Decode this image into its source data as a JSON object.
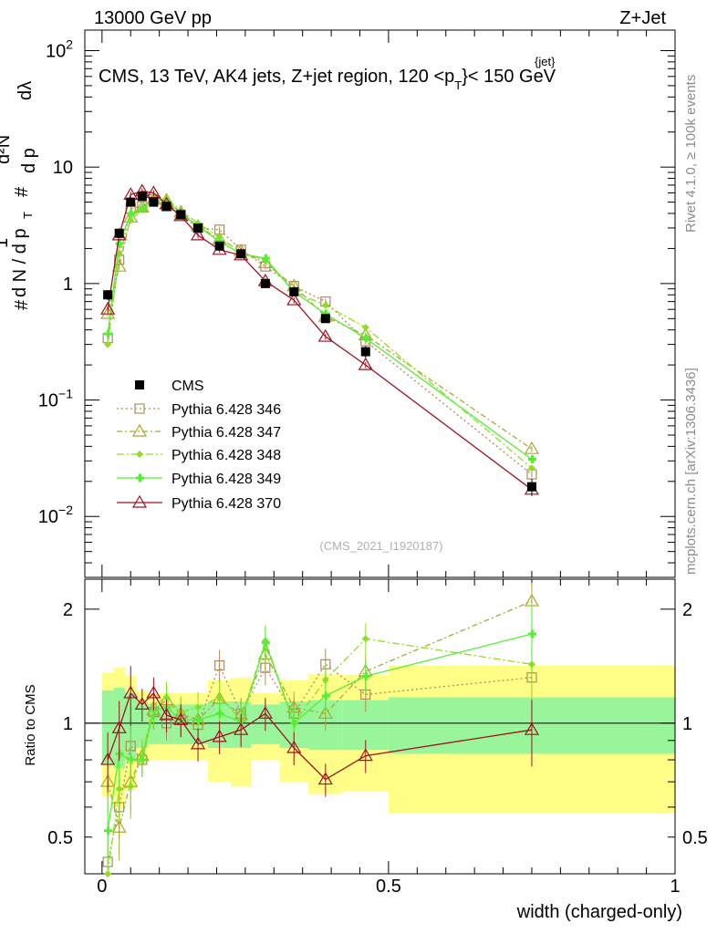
{
  "header": {
    "left": "13000 GeV pp",
    "right": "Z+Jet"
  },
  "side_labels": {
    "top": "Rivet 4.1.0, ≥ 100k events",
    "bottom": "mcplots.cern.ch [arXiv:1306.3436]"
  },
  "chart_data": {
    "type": "line",
    "title": "CMS, 13 TeV, AK4 jets, Z+jet region, 120 <p",
    "title_sup": "{jet}",
    "title_sub": "T",
    "title_tail": "}< 150 GeV",
    "analysis_tag": "(CMS_2021_I1920187)",
    "xlabel": "width (charged-only)",
    "ylabel_parts": {
      "hash": "#",
      "one": "1",
      "dN": "d N / d p",
      "T": "T",
      "hash2": "#",
      "d2N": "d²N",
      "dpT": "d p",
      "dl": "dλ"
    },
    "ratio_ylabel": "Ratio to CMS",
    "xlim": [
      -0.03,
      1.0
    ],
    "ylim": [
      0.003,
      150
    ],
    "ratio_ylim": [
      0.4,
      2.4
    ],
    "x_ticks": [
      {
        "v": 0,
        "label": "0"
      },
      {
        "v": 0.5,
        "label": "0.5"
      },
      {
        "v": 1,
        "label": "1"
      }
    ],
    "y_ticks": [
      {
        "v": 0.01,
        "base": "10",
        "exp": "−2"
      },
      {
        "v": 0.1,
        "base": "10",
        "exp": "−1"
      },
      {
        "v": 1,
        "base": "1",
        "exp": ""
      },
      {
        "v": 10,
        "base": "10",
        "exp": ""
      },
      {
        "v": 100,
        "base": "10",
        "exp": "2"
      }
    ],
    "ratio_ticks": [
      {
        "v": 0.5,
        "label": "0.5"
      },
      {
        "v": 1,
        "label": "1"
      },
      {
        "v": 2,
        "label": "2"
      }
    ],
    "bin_edges": [
      0,
      0.02,
      0.04,
      0.06,
      0.08,
      0.1,
      0.125,
      0.15,
      0.185,
      0.225,
      0.26,
      0.31,
      0.36,
      0.42,
      0.5,
      1.0
    ],
    "x": [
      0.01,
      0.03,
      0.05,
      0.07,
      0.09,
      0.1125,
      0.1375,
      0.1675,
      0.205,
      0.2425,
      0.285,
      0.335,
      0.39,
      0.46,
      0.75
    ],
    "band_inner": [
      0.22,
      0.24,
      0.2,
      0.14,
      0.12,
      0.12,
      0.12,
      0.12,
      0.14,
      0.14,
      0.12,
      0.14,
      0.15,
      0.15,
      0.17
    ],
    "band_outer": [
      0.36,
      0.4,
      0.33,
      0.22,
      0.2,
      0.2,
      0.2,
      0.2,
      0.3,
      0.32,
      0.2,
      0.3,
      0.35,
      0.34,
      0.42
    ],
    "series": [
      {
        "name": "CMS",
        "color": "#000000",
        "marker": "square-filled",
        "dash": "",
        "values": [
          0.8,
          2.7,
          5.0,
          5.6,
          5.0,
          4.6,
          3.9,
          3.0,
          2.1,
          1.8,
          1.0,
          0.85,
          0.5,
          0.26,
          0.018
        ],
        "errors": [
          0.08,
          0.2,
          0.3,
          0.3,
          0.3,
          0.25,
          0.2,
          0.15,
          0.12,
          0.1,
          0.06,
          0.06,
          0.04,
          0.03,
          0.003
        ]
      },
      {
        "name": "Pythia 6.428 346",
        "color": "#b08a5a",
        "marker": "square-open",
        "dash": "2,3",
        "values": [
          0.34,
          1.6,
          4.4,
          4.6,
          5.3,
          4.6,
          3.9,
          3.0,
          2.9,
          1.95,
          1.4,
          0.95,
          0.7,
          0.32,
          0.023
        ],
        "ratio": [
          0.43,
          0.6,
          0.87,
          0.8,
          1.07,
          1.0,
          1.02,
          0.99,
          1.42,
          1.06,
          1.4,
          1.06,
          1.43,
          1.19,
          1.32
        ]
      },
      {
        "name": "Pythia 6.428 347",
        "color": "#a8a832",
        "marker": "triangle-open",
        "dash": "6,3,2,3",
        "values": [
          0.55,
          1.4,
          3.7,
          4.5,
          5.3,
          5.2,
          4.1,
          3.1,
          2.4,
          1.9,
          1.5,
          0.95,
          0.52,
          0.36,
          0.038
        ],
        "ratio": [
          0.7,
          0.53,
          0.7,
          0.82,
          1.08,
          1.15,
          1.06,
          1.02,
          1.16,
          1.05,
          1.52,
          1.1,
          1.06,
          1.37,
          2.1
        ]
      },
      {
        "name": "Pythia 6.428 348",
        "color": "#90dd20",
        "marker": "diamond-small",
        "dash": "8,3,2,3",
        "values": [
          0.3,
          1.8,
          3.5,
          4.3,
          5.6,
          5.4,
          4.2,
          3.3,
          2.5,
          1.85,
          1.6,
          0.85,
          0.65,
          0.42,
          0.026
        ],
        "ratio": [
          0.4,
          0.67,
          0.68,
          0.82,
          1.12,
          1.17,
          1.07,
          1.1,
          1.17,
          1.02,
          1.65,
          1.0,
          1.3,
          1.67,
          1.43
        ]
      },
      {
        "name": "Pythia 6.428 349",
        "color": "#55ee33",
        "marker": "cross",
        "dash": "",
        "values": [
          0.37,
          2.2,
          4.0,
          4.4,
          5.2,
          5.1,
          4.0,
          3.1,
          2.3,
          1.8,
          1.65,
          0.85,
          0.55,
          0.34,
          0.031
        ],
        "ratio": [
          0.52,
          0.83,
          0.8,
          0.8,
          1.08,
          1.1,
          1.02,
          1.02,
          1.06,
          1.01,
          1.63,
          1.0,
          1.18,
          1.33,
          1.72
        ]
      },
      {
        "name": "Pythia 6.428 370",
        "color": "#a01020",
        "marker": "triangle-open",
        "dash": "",
        "values": [
          0.6,
          2.6,
          5.8,
          6.2,
          6.0,
          4.8,
          3.8,
          2.6,
          1.95,
          1.75,
          1.05,
          0.72,
          0.35,
          0.2,
          0.017
        ],
        "ratio": [
          0.8,
          0.97,
          1.2,
          1.12,
          1.2,
          1.05,
          1.02,
          0.88,
          0.92,
          0.96,
          1.06,
          0.86,
          0.71,
          0.82,
          0.96
        ]
      }
    ]
  }
}
